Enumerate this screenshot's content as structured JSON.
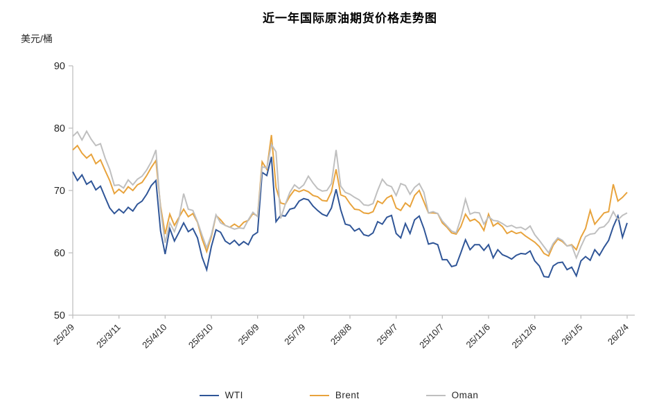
{
  "chart": {
    "title": "近一年国际原油期货价格走势图",
    "unit_label": "美元/桶"
  },
  "chart_data": {
    "type": "line",
    "title": "近一年国际原油期货价格走势图",
    "ylabel": "美元/桶",
    "xlabel": "",
    "ylim": [
      50,
      90
    ],
    "y_ticks": [
      50,
      60,
      70,
      80,
      90
    ],
    "grid": false,
    "legend_position": "bottom",
    "axis_color": "#BFBFBF",
    "label_color": "#262626",
    "title_color": "#000000",
    "x_tick_labels": [
      "25/2/9",
      "25/3/11",
      "25/4/10",
      "25/5/10",
      "25/6/9",
      "25/7/9",
      "25/8/8",
      "25/9/7",
      "25/10/7",
      "25/11/6",
      "25/12/6",
      "26/1/5",
      "26/2/4"
    ],
    "points_per_tick_interval": 10,
    "series": [
      {
        "name": "WTI",
        "color": "#2F5597",
        "values": [
          73,
          71.6,
          72.5,
          71,
          71.5,
          70.1,
          70.7,
          68.9,
          67.2,
          66.3,
          67,
          66.4,
          67.3,
          66.7,
          67.8,
          68.3,
          69.4,
          70.8,
          71.6,
          63.5,
          59.8,
          63.9,
          61.9,
          63.3,
          64.8,
          63.4,
          63.9,
          62.4,
          59.3,
          57.3,
          61,
          63.7,
          63.3,
          61.9,
          61.4,
          62,
          61.2,
          61.8,
          61.3,
          62.8,
          63.3,
          72.9,
          72.4,
          75.4,
          65,
          66,
          65.9,
          67,
          67.2,
          68.3,
          68.7,
          68.5,
          67.5,
          66.8,
          66.2,
          65.9,
          67.2,
          70.2,
          66.9,
          64.6,
          64.4,
          63.5,
          63.9,
          62.9,
          62.7,
          63.2,
          65,
          64.6,
          65.7,
          66,
          63.1,
          62.4,
          64.7,
          63.1,
          65.3,
          65.9,
          63.9,
          61.4,
          61.6,
          61.3,
          58.9,
          58.9,
          57.8,
          58,
          60,
          62.1,
          60.5,
          61.3,
          61.3,
          60.4,
          61.3,
          59.2,
          60.5,
          59.7,
          59.4,
          59,
          59.6,
          59.9,
          59.8,
          60.3,
          58.7,
          57.9,
          56.2,
          56.1,
          57.9,
          58.4,
          58.5,
          57.3,
          57.7,
          56.3,
          58.7,
          59.4,
          58.8,
          60.5,
          59.6,
          60.9,
          62,
          64.2,
          65.9,
          62.5,
          64.8
        ]
      },
      {
        "name": "Brent",
        "color": "#E8A33C",
        "values": [
          76.5,
          77.2,
          76,
          75.2,
          75.8,
          74.3,
          74.9,
          73.2,
          71.6,
          69.5,
          70.2,
          69.6,
          70.6,
          70,
          70.9,
          71.3,
          72.4,
          73.7,
          74.8,
          67.5,
          63,
          66.2,
          64.4,
          65.7,
          67,
          65.8,
          66.3,
          64.9,
          62.2,
          60.2,
          62.6,
          66,
          65.3,
          64.4,
          64.1,
          64.6,
          64.1,
          64.9,
          65.2,
          66.3,
          65.9,
          74.6,
          73.4,
          78.9,
          70.5,
          68,
          67.8,
          69.1,
          70.1,
          69.8,
          70.1,
          69.8,
          69.2,
          69,
          68.4,
          68.3,
          69.8,
          73.4,
          69.3,
          69,
          67.9,
          67,
          66.9,
          66.4,
          66.3,
          66.6,
          68.3,
          67.9,
          68.8,
          69.2,
          67.2,
          66.8,
          68,
          67.4,
          69.2,
          70,
          68.2,
          66.4,
          66.4,
          66.3,
          64.8,
          64.1,
          63.2,
          63,
          64.2,
          66.2,
          65.1,
          65.4,
          64.8,
          63.6,
          66.2,
          64.3,
          64.8,
          64.2,
          63.1,
          63.5,
          63.1,
          63.3,
          62.7,
          62.2,
          61.7,
          61,
          59.9,
          59.5,
          61.2,
          62.2,
          61.8,
          61.1,
          61.3,
          60.5,
          62.5,
          63.9,
          66.8,
          64.6,
          65.5,
          66.4,
          66.6,
          71,
          68.3,
          68.9,
          69.7
        ]
      },
      {
        "name": "Oman",
        "color": "#BFBFBF",
        "values": [
          78.7,
          79.4,
          78.1,
          79.5,
          78.2,
          77.2,
          77.5,
          75.2,
          73.4,
          70.8,
          70.9,
          70.4,
          71.7,
          70.9,
          71.8,
          72.3,
          73.3,
          74.6,
          76.5,
          67,
          61.6,
          64.8,
          63.4,
          65.5,
          69.5,
          67,
          66.8,
          65,
          62.8,
          60.8,
          62.9,
          66.1,
          64.8,
          64.4,
          64.1,
          63.8,
          64,
          63.9,
          65.3,
          66.5,
          65.8,
          73.8,
          73.6,
          77.4,
          76.2,
          65.5,
          67.8,
          69.7,
          70.9,
          70.3,
          70.9,
          72.3,
          71.2,
          70.3,
          69.9,
          70,
          71.1,
          76.5,
          70.7,
          69.7,
          69.4,
          68.9,
          68.5,
          67.7,
          67.6,
          67.9,
          70,
          71.8,
          70.9,
          70.6,
          69.2,
          71.1,
          70.8,
          69.4,
          70.5,
          71.1,
          69.7,
          66.4,
          66.6,
          66.3,
          65.1,
          64.3,
          63.5,
          63.2,
          65.5,
          68.6,
          66.2,
          66.5,
          66.4,
          64.6,
          65.8,
          65.2,
          65.1,
          64.7,
          64.2,
          64.4,
          64,
          64.1,
          63.7,
          64.3,
          62.9,
          62,
          61,
          60,
          61.5,
          62.4,
          62,
          61.1,
          61.2,
          59.2,
          61,
          62.6,
          63,
          63.1,
          64,
          64.2,
          65,
          66.6,
          65.3,
          66,
          66.4
        ]
      }
    ]
  }
}
